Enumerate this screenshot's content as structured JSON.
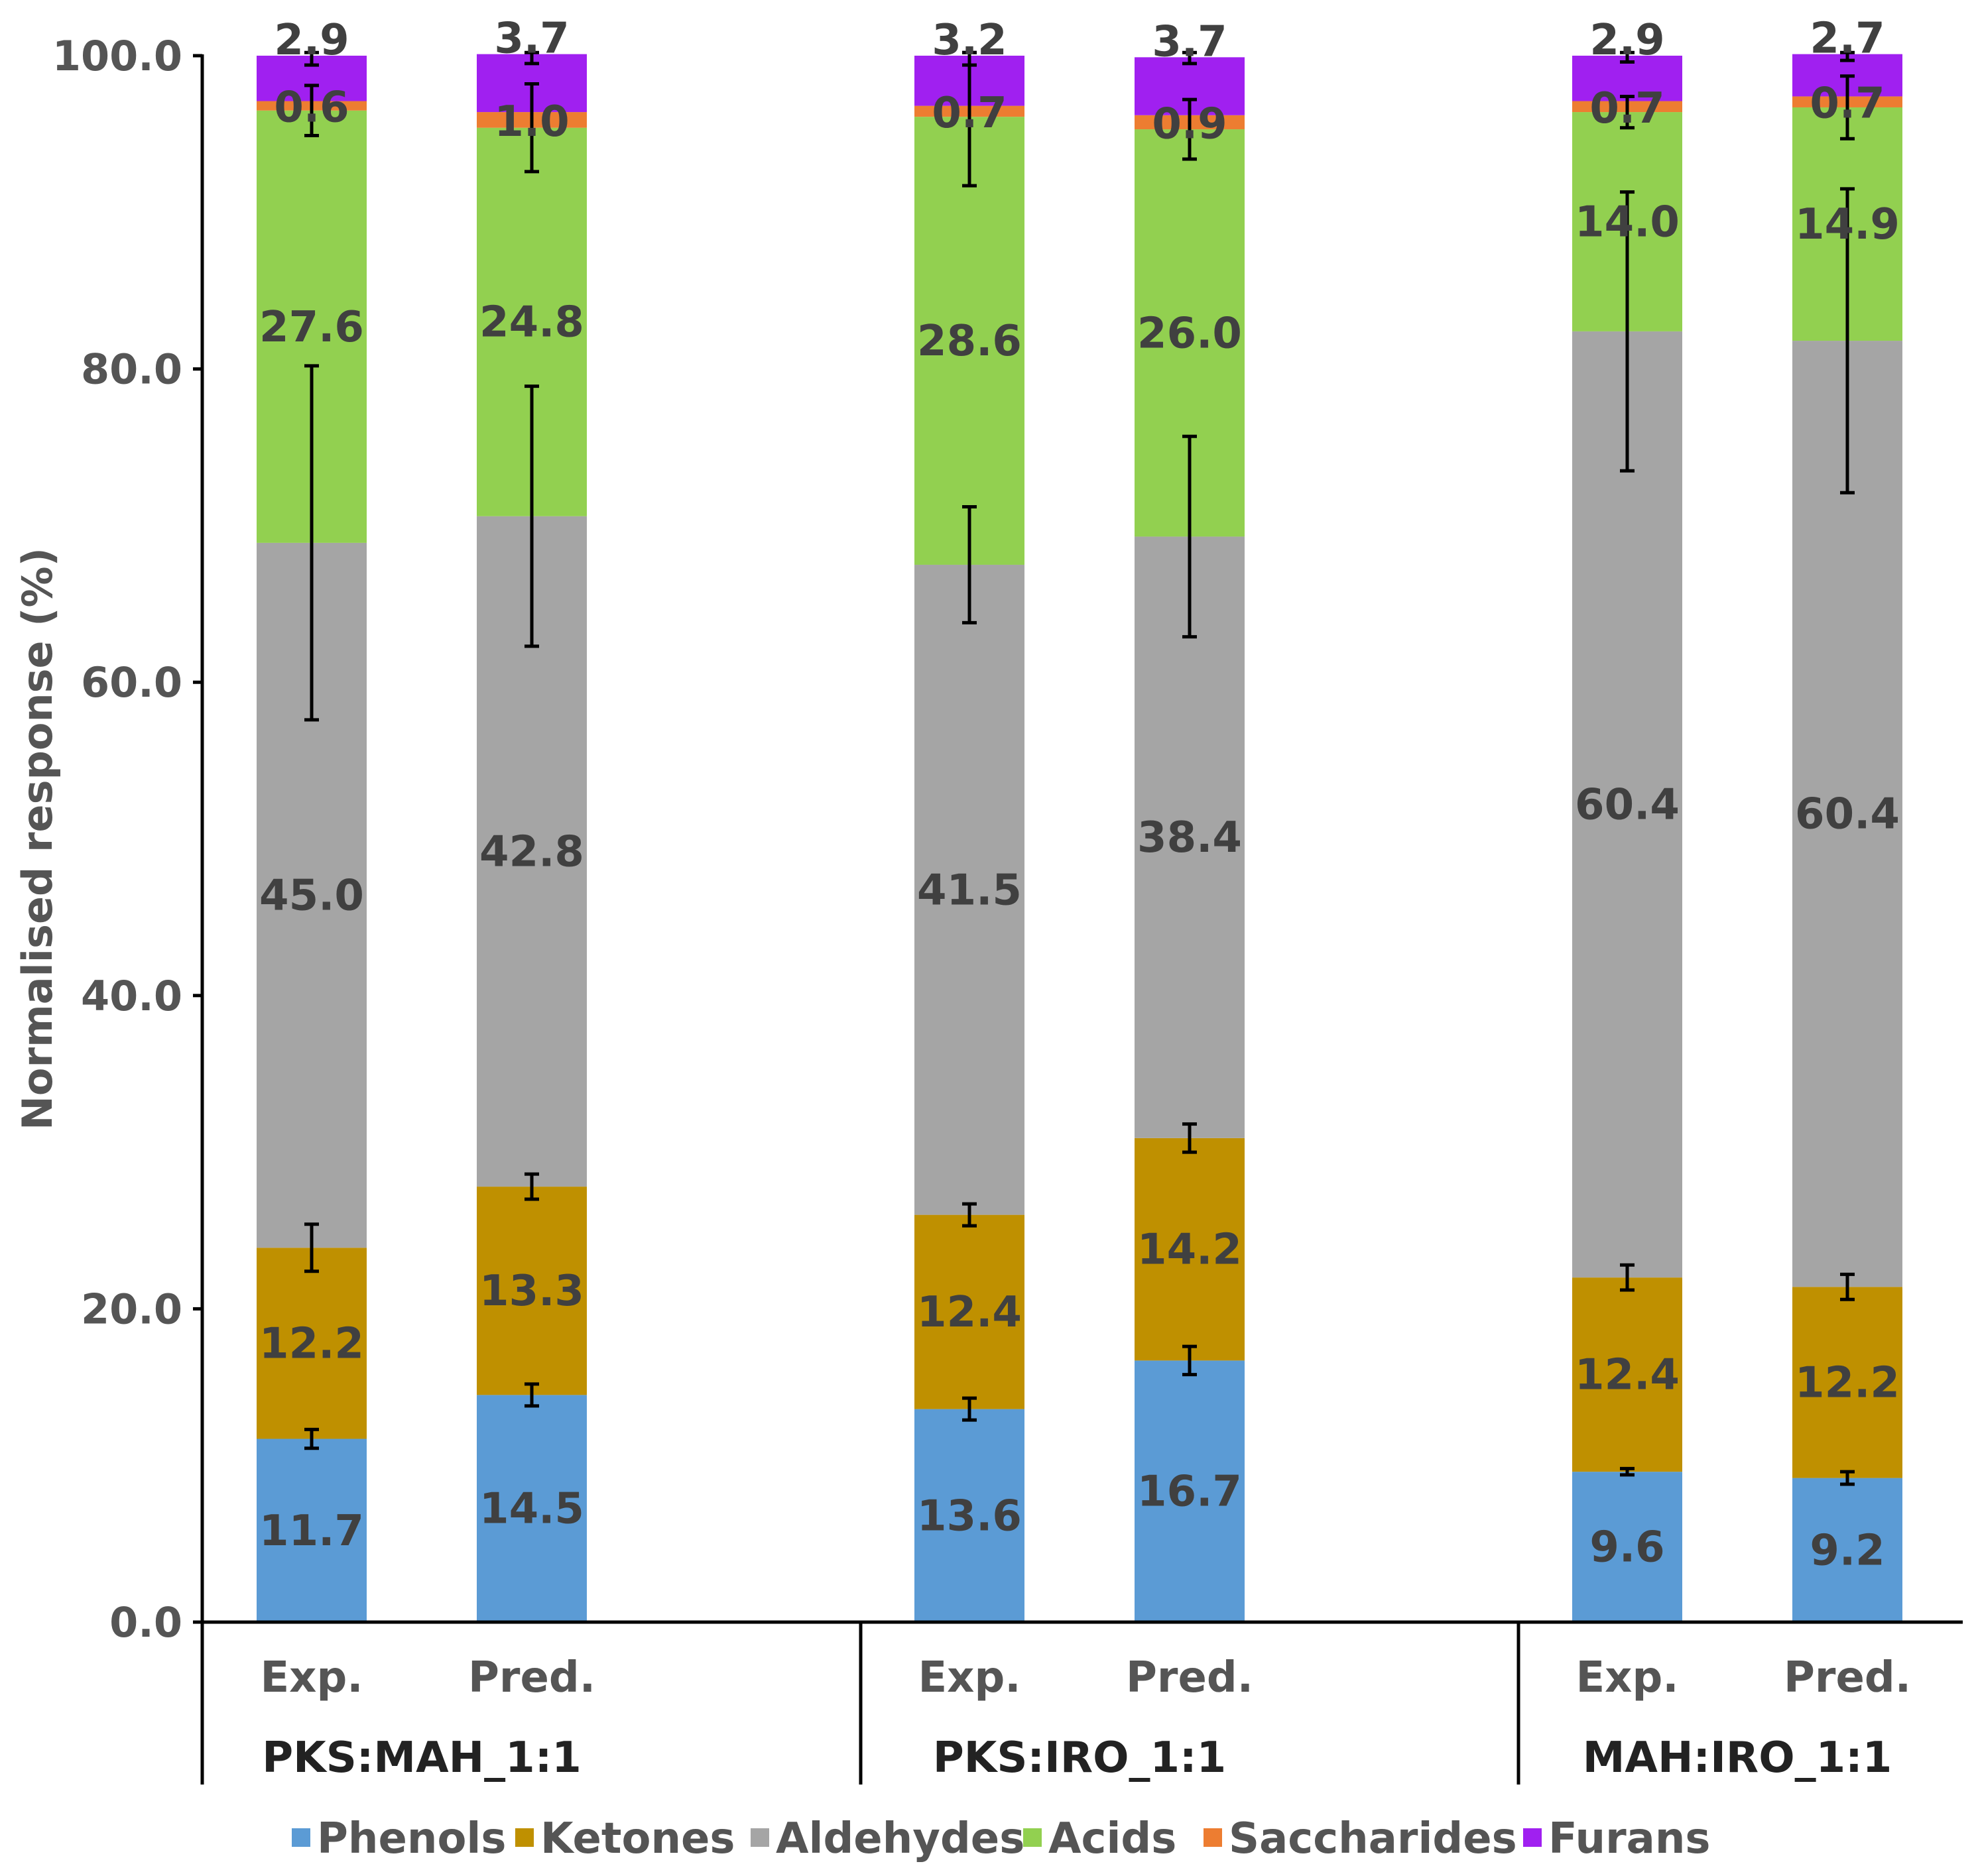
{
  "chart_data": {
    "type": "bar",
    "stacked": true,
    "ylabel": "Normalised response (%)",
    "ylim": [
      0,
      100
    ],
    "yticks": [
      "0.0",
      "20.0",
      "40.0",
      "60.0",
      "80.0",
      "100.0"
    ],
    "grid": false,
    "legend_position": "bottom",
    "groups": [
      {
        "name": "PKS:MAH_1:1",
        "categories": [
          "Exp.",
          "Pred."
        ]
      },
      {
        "name": "PKS:IRO_1:1",
        "categories": [
          "Exp.",
          "Pred."
        ]
      },
      {
        "name": "MAH:IRO_1:1",
        "categories": [
          "Exp.",
          "Pred."
        ]
      }
    ],
    "series": [
      {
        "name": "Phenols",
        "color": "#5b9bd5",
        "values": [
          11.7,
          14.5,
          13.6,
          16.7,
          9.6,
          9.2
        ],
        "labels": [
          "11.7",
          "14.5",
          "13.6",
          "16.7",
          "9.6",
          "9.2"
        ]
      },
      {
        "name": "Ketones",
        "color": "#bf9000",
        "values": [
          12.2,
          13.3,
          12.4,
          14.2,
          12.4,
          12.2
        ],
        "labels": [
          "12.2",
          "13.3",
          "12.4",
          "14.2",
          "12.4",
          "12.2"
        ]
      },
      {
        "name": "Aldehydes",
        "color": "#a5a5a5",
        "values": [
          45.0,
          42.8,
          41.5,
          38.4,
          60.4,
          60.4
        ],
        "labels": [
          "45.0",
          "42.8",
          "41.5",
          "38.4",
          "60.4",
          "60.4"
        ]
      },
      {
        "name": "Acids",
        "color": "#92d050",
        "values": [
          27.6,
          24.8,
          28.6,
          26.0,
          14.0,
          14.9
        ],
        "labels": [
          "27.6",
          "24.8",
          "28.6",
          "26.0",
          "14.0",
          "14.9"
        ]
      },
      {
        "name": "Saccharides",
        "color": "#ed7d31",
        "values": [
          0.6,
          1.0,
          0.7,
          0.9,
          0.7,
          0.7
        ],
        "labels": [
          "0.6",
          "1.0",
          "0.7",
          "0.9",
          "0.7",
          "0.7"
        ]
      },
      {
        "name": "Furans",
        "color": "#a020f0",
        "values": [
          2.9,
          3.7,
          3.2,
          3.7,
          2.9,
          2.7
        ],
        "labels": [
          "2.9",
          "3.7",
          "3.2",
          "3.7",
          "2.9",
          "2.7"
        ]
      }
    ],
    "error_bars": [
      {
        "series": "Phenols",
        "errors": [
          0.6,
          0.7,
          0.7,
          0.9,
          0.2,
          0.4
        ]
      },
      {
        "series": "Ketones",
        "errors": [
          1.5,
          0.8,
          0.7,
          0.9,
          0.8,
          0.8
        ]
      },
      {
        "series": "Aldehydes",
        "errors": [
          11.3,
          8.3,
          3.7,
          6.4,
          8.9,
          9.7
        ]
      },
      {
        "series": "Acids",
        "errors": [
          1.6,
          2.8,
          4.4,
          1.9,
          1.0,
          2.0
        ]
      },
      {
        "series": "Furans",
        "errors": [
          0.6,
          0.6,
          0.6,
          0.4,
          0.4,
          0.4
        ]
      }
    ]
  }
}
